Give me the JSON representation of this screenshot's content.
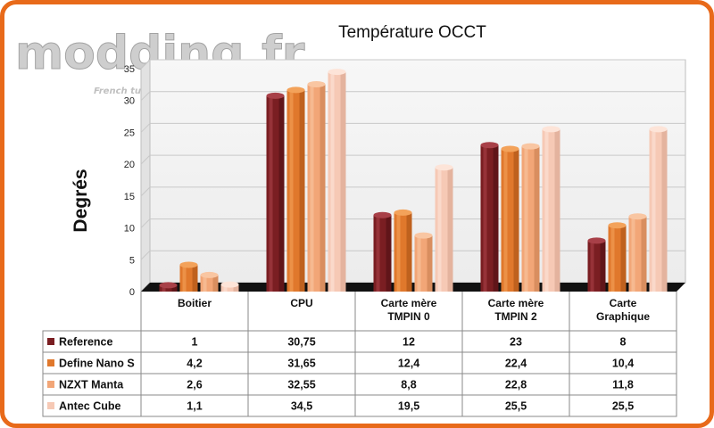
{
  "watermark": {
    "logo_text": "modding.fr",
    "small_text": "French tuning"
  },
  "chart_data": {
    "type": "bar",
    "title": "Température OCCT",
    "ylabel": "Degrés",
    "xlabel": "",
    "ylim": [
      0,
      35
    ],
    "yticks": [
      0,
      5,
      10,
      15,
      20,
      25,
      30,
      35
    ],
    "grid": true,
    "legend": "table-bottom",
    "categories": [
      [
        "Boitier"
      ],
      [
        "CPU"
      ],
      [
        "Carte mère",
        "TMPIN 0"
      ],
      [
        "Carte mère",
        "TMPIN 2"
      ],
      [
        "Carte",
        "Graphique"
      ]
    ],
    "series": [
      {
        "name": "Reference",
        "values": [
          1,
          30.75,
          12,
          23,
          8
        ],
        "labels": [
          "1",
          "30,75",
          "12",
          "23",
          "8"
        ],
        "color": "#7a1e22",
        "light": "#a84048",
        "dark": "#4a0e12"
      },
      {
        "name": "Define Nano S",
        "values": [
          4.2,
          31.65,
          12.4,
          22.4,
          10.4
        ],
        "labels": [
          "4,2",
          "31,65",
          "12,4",
          "22,4",
          "10,4"
        ],
        "color": "#e0782c",
        "light": "#f3a25a",
        "dark": "#a44e14"
      },
      {
        "name": "NZXT Manta",
        "values": [
          2.6,
          32.55,
          8.8,
          22.8,
          11.8
        ],
        "labels": [
          "2,6",
          "32,55",
          "8,8",
          "22,8",
          "11,8"
        ],
        "color": "#f2a677",
        "light": "#f9c6a2",
        "dark": "#c47a4d"
      },
      {
        "name": "Antec Cube",
        "values": [
          1.1,
          34.5,
          19.5,
          25.5,
          25.5
        ],
        "labels": [
          "1,1",
          "34,5",
          "19,5",
          "25,5",
          "25,5"
        ],
        "color": "#f6c9b5",
        "light": "#fde4d8",
        "dark": "#d6a08a"
      }
    ]
  }
}
